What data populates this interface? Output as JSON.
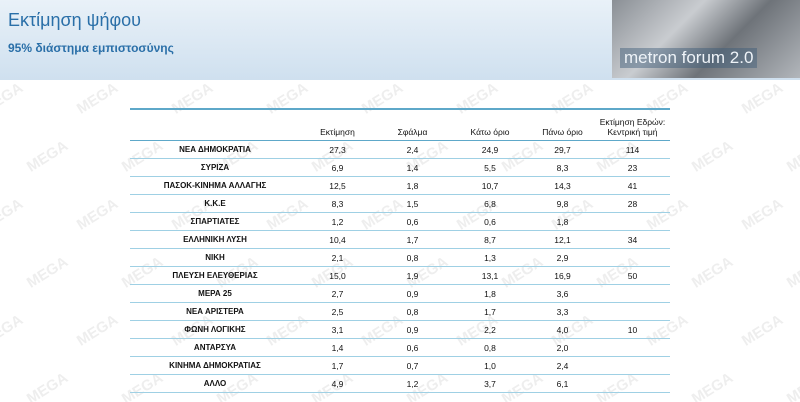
{
  "header": {
    "title": "Εκτίμηση ψήφου",
    "subtitle": "95% διάστημα εμπιστοσύνης",
    "logo": "metron forum 2.0"
  },
  "watermark": "MEGA",
  "table": {
    "columns": [
      "Εκτίμηση",
      "Σφάλμα",
      "Κάτω όριο",
      "Πάνω όριο",
      "Εκτίμηση Εδρών: Κεντρική τιμή"
    ],
    "rows": [
      [
        "ΝΕΑ ΔΗΜΟΚΡΑΤΙΑ",
        "27,3",
        "2,4",
        "24,9",
        "29,7",
        "114"
      ],
      [
        "ΣΥΡΙΖΑ",
        "6,9",
        "1,4",
        "5,5",
        "8,3",
        "23"
      ],
      [
        "ΠΑΣΟΚ-ΚΙΝΗΜΑ ΑΛΛΑΓΗΣ",
        "12,5",
        "1,8",
        "10,7",
        "14,3",
        "41"
      ],
      [
        "Κ.Κ.Ε",
        "8,3",
        "1,5",
        "6,8",
        "9,8",
        "28"
      ],
      [
        "ΣΠΑΡΤΙΑΤΕΣ",
        "1,2",
        "0,6",
        "0,6",
        "1,8",
        null
      ],
      [
        "ΕΛΛΗΝΙΚΗ ΛΥΣΗ",
        "10,4",
        "1,7",
        "8,7",
        "12,1",
        "34"
      ],
      [
        "ΝΙΚΗ",
        "2,1",
        "0,8",
        "1,3",
        "2,9",
        null
      ],
      [
        "ΠΛΕΥΣΗ ΕΛΕΥΘΕΡΙΑΣ",
        "15,0",
        "1,9",
        "13,1",
        "16,9",
        "50"
      ],
      [
        "ΜΕΡΑ 25",
        "2,7",
        "0,9",
        "1,8",
        "3,6",
        null
      ],
      [
        "ΝΕΑ ΑΡΙΣΤΕΡΑ",
        "2,5",
        "0,8",
        "1,7",
        "3,3",
        null
      ],
      [
        "ΦΩΝΗ ΛΟΓΙΚΗΣ",
        "3,1",
        "0,9",
        "2,2",
        "4,0",
        "10"
      ],
      [
        "ΑΝΤΑΡΣΥΑ",
        "1,4",
        "0,6",
        "0,8",
        "2,0",
        null
      ],
      [
        "ΚΙΝΗΜΑ ΔΗΜΟΚΡΑΤΙΑΣ",
        "1,7",
        "0,7",
        "1,0",
        "2,4",
        null
      ],
      [
        "ΑΛΛΟ",
        "4,9",
        "1,2",
        "3,7",
        "6,1",
        null
      ]
    ]
  }
}
